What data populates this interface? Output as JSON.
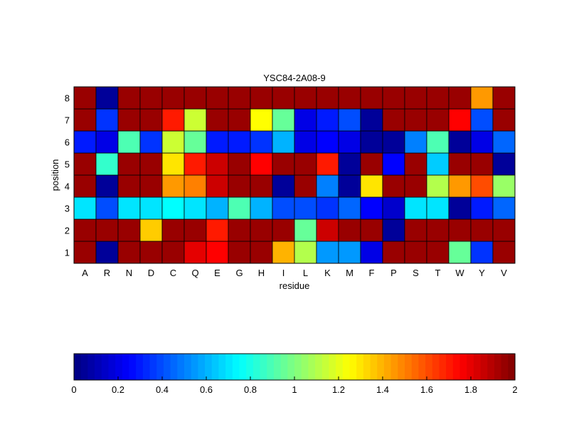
{
  "chart_data": {
    "type": "heatmap",
    "title": "YSC84-2A08-9",
    "xlabel": "residue",
    "ylabel": "position",
    "x_categories": [
      "A",
      "R",
      "N",
      "D",
      "C",
      "Q",
      "E",
      "G",
      "H",
      "I",
      "L",
      "K",
      "M",
      "F",
      "P",
      "S",
      "T",
      "W",
      "Y",
      "V"
    ],
    "y_categories": [
      "1",
      "2",
      "3",
      "4",
      "5",
      "6",
      "7",
      "8"
    ],
    "values": [
      [
        1.95,
        0.05,
        1.95,
        1.95,
        1.95,
        1.8,
        1.75,
        1.95,
        1.95,
        1.4,
        1.1,
        0.55,
        0.55,
        0.2,
        1.95,
        1.95,
        1.95,
        0.95,
        0.35,
        1.95
      ],
      [
        1.95,
        1.95,
        1.95,
        1.35,
        1.95,
        1.95,
        1.7,
        1.95,
        1.95,
        1.95,
        0.95,
        1.85,
        1.95,
        1.95,
        0.05,
        1.95,
        1.95,
        1.95,
        1.95,
        1.95
      ],
      [
        0.7,
        0.4,
        0.7,
        0.7,
        0.75,
        0.7,
        0.6,
        0.9,
        0.6,
        0.4,
        0.4,
        0.35,
        0.45,
        0.25,
        0.15,
        0.7,
        0.7,
        0.05,
        0.3,
        0.45
      ],
      [
        1.95,
        0.05,
        1.95,
        1.95,
        1.45,
        1.5,
        1.85,
        1.95,
        1.95,
        0.05,
        1.95,
        0.5,
        0.05,
        1.3,
        1.95,
        1.95,
        1.1,
        1.45,
        1.6,
        1.05
      ],
      [
        1.95,
        0.85,
        1.95,
        1.95,
        1.3,
        1.7,
        1.85,
        1.95,
        1.75,
        1.95,
        1.95,
        1.7,
        0.05,
        1.95,
        0.25,
        1.95,
        0.65,
        1.95,
        1.95,
        0.05
      ],
      [
        0.3,
        0.2,
        0.9,
        0.35,
        1.15,
        0.95,
        0.3,
        0.3,
        0.35,
        0.6,
        0.2,
        0.25,
        0.2,
        0.05,
        0.05,
        0.5,
        0.9,
        0.05,
        0.2,
        0.45
      ],
      [
        1.95,
        0.35,
        1.95,
        1.95,
        1.7,
        1.15,
        1.95,
        1.95,
        1.25,
        0.95,
        0.2,
        0.3,
        0.4,
        0.05,
        1.95,
        1.95,
        1.95,
        1.75,
        0.4,
        1.95
      ],
      [
        1.95,
        0.05,
        1.95,
        1.95,
        1.95,
        1.95,
        1.95,
        1.95,
        1.95,
        1.95,
        1.95,
        1.95,
        1.95,
        1.95,
        1.95,
        1.95,
        1.95,
        1.95,
        1.45,
        1.95
      ]
    ],
    "value_range": [
      0,
      2
    ],
    "colormap": "jet",
    "colorbar": {
      "orientation": "horizontal",
      "ticks": [
        "0",
        "0.2",
        "0.4",
        "0.6",
        "0.8",
        "1",
        "1.2",
        "1.4",
        "1.6",
        "1.8",
        "2"
      ]
    },
    "grid": true
  }
}
